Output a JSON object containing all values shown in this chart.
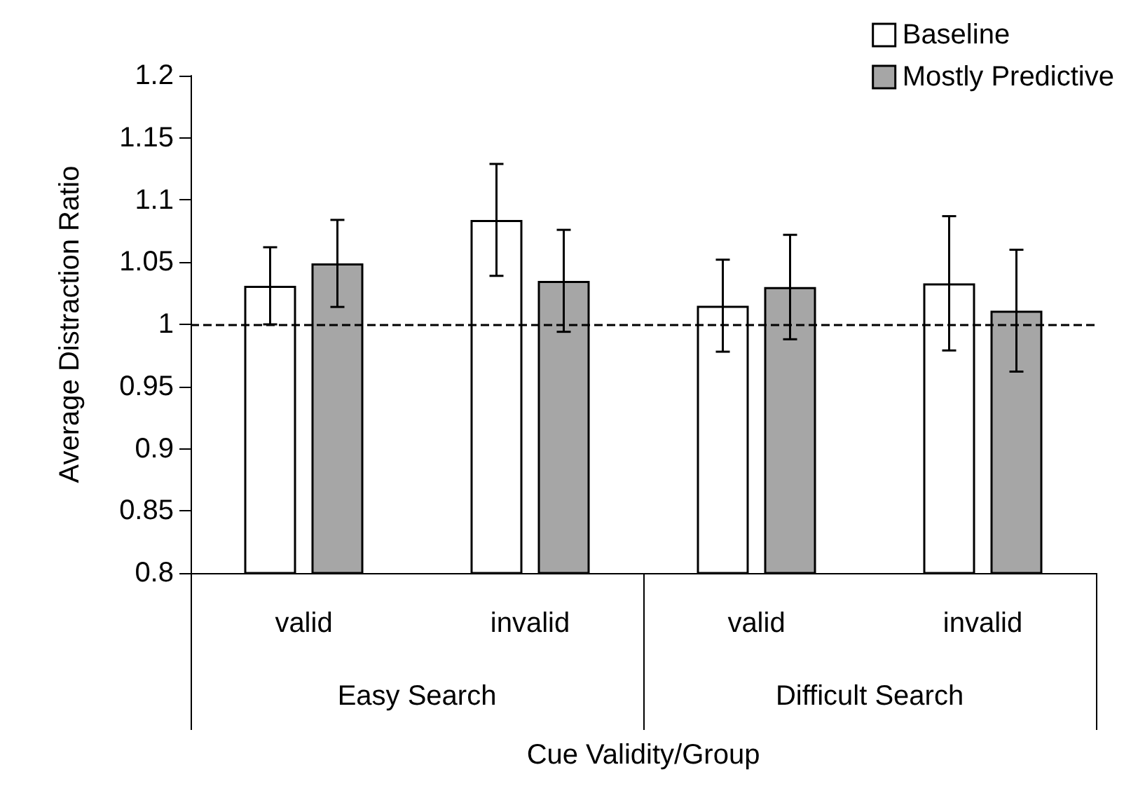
{
  "chart_data": {
    "type": "bar",
    "ylabel": "Average Distraction Ratio",
    "xlabel": "Cue Validity/Group",
    "categories": [
      "valid",
      "invalid",
      "valid",
      "invalid"
    ],
    "annotations": [
      "Easy Search",
      "Difficult Search"
    ],
    "series": [
      {
        "name": "Baseline",
        "color": "#ffffff",
        "values": [
          1.031,
          1.084,
          1.015,
          1.033
        ],
        "errors": [
          0.031,
          0.045,
          0.037,
          0.054
        ]
      },
      {
        "name": "Mostly Predictive",
        "color": "#a6a6a6",
        "values": [
          1.049,
          1.035,
          1.03,
          1.011
        ],
        "errors": [
          0.035,
          0.041,
          0.042,
          0.049
        ]
      }
    ],
    "ylim": [
      0.8,
      1.2
    ],
    "yticks": [
      0.8,
      0.85,
      0.9,
      0.95,
      1,
      1.05,
      1.1,
      1.15,
      1.2
    ],
    "legend": "top right",
    "ref_lines": [
      {
        "axis": "y",
        "value": 1,
        "color": "#000000",
        "line_style": "dashed"
      }
    ]
  }
}
